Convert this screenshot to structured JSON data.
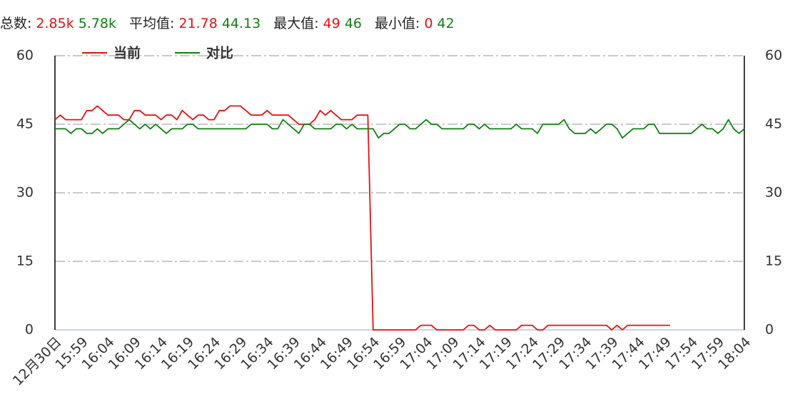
{
  "chart_data": {
    "type": "line",
    "summary": [
      {
        "label": "总数:",
        "current": "2.85k",
        "compare": "5.78k"
      },
      {
        "label": "平均值:",
        "current": 21.78,
        "compare": 44.13
      },
      {
        "label": "最大值:",
        "current": 49,
        "compare": 46
      },
      {
        "label": "最小值:",
        "current": 0,
        "compare": 42
      }
    ],
    "categories": [
      "12月30日",
      null,
      null,
      null,
      null,
      "15:59",
      null,
      null,
      null,
      null,
      "16:04",
      null,
      null,
      null,
      null,
      "16:09",
      null,
      null,
      null,
      null,
      "16:14",
      null,
      null,
      null,
      null,
      "16:19",
      null,
      null,
      null,
      null,
      "16:24",
      null,
      null,
      null,
      null,
      "16:29",
      null,
      null,
      null,
      null,
      "16:34",
      null,
      null,
      null,
      null,
      "16:39",
      null,
      null,
      null,
      null,
      "16:44",
      null,
      null,
      null,
      null,
      "16:49",
      null,
      null,
      null,
      null,
      "16:54",
      null,
      null,
      null,
      null,
      "16:59",
      null,
      null,
      null,
      null,
      "17:04",
      null,
      null,
      null,
      null,
      "17:09",
      null,
      null,
      null,
      null,
      "17:14",
      null,
      null,
      null,
      null,
      "17:19",
      null,
      null,
      null,
      null,
      "17:24",
      null,
      null,
      null,
      null,
      "17:29",
      null,
      null,
      null,
      null,
      "17:34",
      null,
      null,
      null,
      null,
      "17:39",
      null,
      null,
      null,
      null,
      "17:44",
      null,
      null,
      null,
      null,
      "17:49",
      null,
      null,
      null,
      null,
      "17:54",
      null,
      null,
      null,
      null,
      "17:59",
      null,
      null,
      null,
      null,
      "18:04"
    ],
    "series": [
      {
        "name": "当前",
        "color": "#e81010",
        "values": [
          46,
          47,
          46,
          46,
          46,
          46,
          48,
          48,
          49,
          48,
          47,
          47,
          47,
          46,
          46,
          48,
          48,
          47,
          47,
          47,
          46,
          47,
          47,
          46,
          48,
          47,
          46,
          47,
          47,
          46,
          46,
          48,
          48,
          49,
          49,
          49,
          48,
          47,
          47,
          47,
          48,
          47,
          47,
          47,
          47,
          46,
          45,
          45,
          45,
          46,
          48,
          47,
          48,
          47,
          46,
          46,
          46,
          47,
          47,
          47,
          0,
          0,
          0,
          0,
          0,
          0,
          0,
          0,
          0,
          1,
          1,
          1,
          0,
          0,
          0,
          0,
          0,
          0,
          1,
          1,
          0,
          0,
          1,
          0,
          0,
          0,
          0,
          0,
          1,
          1,
          1,
          0,
          0,
          1,
          1,
          1,
          1,
          1,
          1,
          1,
          1,
          1,
          1,
          1,
          1,
          0,
          1,
          0,
          1,
          1,
          1,
          1,
          1,
          1,
          1,
          1,
          1,
          null,
          null,
          null,
          null,
          null,
          null,
          null,
          null,
          null,
          null,
          null,
          null,
          null,
          null
        ]
      },
      {
        "name": "对比",
        "color": "#108010",
        "values": [
          44,
          44,
          44,
          43,
          44,
          44,
          43,
          43,
          44,
          43,
          44,
          44,
          44,
          45,
          46,
          45,
          44,
          45,
          44,
          45,
          44,
          43,
          44,
          44,
          44,
          45,
          45,
          44,
          44,
          44,
          44,
          44,
          44,
          44,
          44,
          44,
          44,
          45,
          45,
          45,
          45,
          44,
          44,
          46,
          45,
          44,
          43,
          45,
          45,
          44,
          44,
          44,
          44,
          45,
          45,
          44,
          45,
          44,
          44,
          44,
          44,
          42,
          43,
          43,
          44,
          45,
          45,
          44,
          44,
          45,
          46,
          45,
          45,
          44,
          44,
          44,
          44,
          44,
          45,
          45,
          44,
          45,
          44,
          44,
          44,
          44,
          44,
          45,
          44,
          44,
          44,
          43,
          45,
          45,
          45,
          45,
          46,
          44,
          43,
          43,
          43,
          44,
          43,
          44,
          45,
          45,
          44,
          42,
          43,
          44,
          44,
          44,
          45,
          45,
          43,
          43,
          43,
          43,
          43,
          43,
          43,
          44,
          45,
          44,
          44,
          43,
          44,
          46,
          44,
          43,
          44
        ]
      }
    ],
    "ylim": [
      0,
      60
    ],
    "yticks": [
      0,
      15,
      30,
      45,
      60
    ],
    "grid": true
  }
}
